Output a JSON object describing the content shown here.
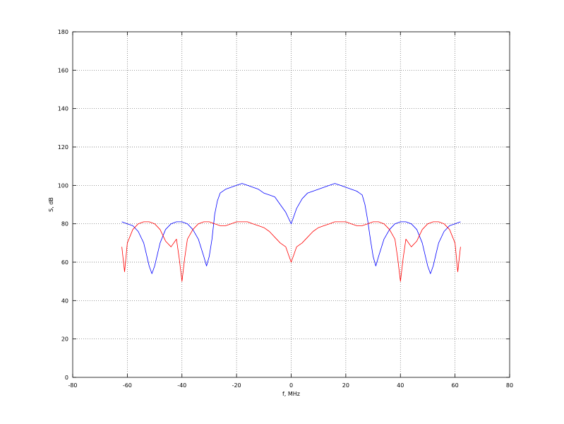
{
  "chart_data": {
    "type": "line",
    "title": "",
    "xlabel": "f, MHz",
    "ylabel": "S, dB",
    "xlim": [
      -80,
      80
    ],
    "ylim": [
      0,
      180
    ],
    "xticks": [
      -80,
      -60,
      -40,
      -20,
      0,
      20,
      40,
      60,
      80
    ],
    "yticks": [
      0,
      20,
      40,
      60,
      80,
      100,
      120,
      140,
      160,
      180
    ],
    "grid": true,
    "legend": "none",
    "series": [
      {
        "color": "#0000ff",
        "x": [
          -62,
          -60,
          -58,
          -56,
          -54,
          -53,
          -52,
          -51,
          -50,
          -48,
          -46,
          -44,
          -42,
          -40,
          -38,
          -36,
          -34,
          -32,
          -31,
          -30,
          -29,
          -28,
          -27,
          -26,
          -24,
          -22,
          -20,
          -18,
          -16,
          -14,
          -12,
          -10,
          -8,
          -6,
          -4,
          -2,
          -1,
          0,
          1,
          2,
          4,
          6,
          8,
          10,
          12,
          14,
          16,
          18,
          20,
          22,
          24,
          26,
          27,
          28,
          29,
          30,
          31,
          32,
          34,
          36,
          38,
          40,
          42,
          44,
          46,
          48,
          50,
          51,
          52,
          53,
          54,
          56,
          58,
          60,
          62
        ],
        "y": [
          81,
          80,
          79,
          76,
          70,
          64,
          58,
          54,
          58,
          70,
          77,
          80,
          81,
          81,
          80,
          77,
          72,
          63,
          58,
          63,
          72,
          85,
          92,
          96,
          98,
          99,
          100,
          101,
          100,
          99,
          98,
          96,
          95,
          94,
          90,
          86,
          83,
          80,
          84,
          88,
          93,
          96,
          97,
          98,
          99,
          100,
          101,
          100,
          99,
          98,
          97,
          95,
          90,
          82,
          72,
          63,
          58,
          63,
          72,
          77,
          80,
          81,
          81,
          80,
          77,
          70,
          58,
          54,
          58,
          64,
          70,
          76,
          79,
          80,
          81
        ]
      },
      {
        "color": "#ff0000",
        "x": [
          -62,
          -61,
          -60,
          -58,
          -56,
          -54,
          -52,
          -50,
          -48,
          -46,
          -44,
          -42,
          -41,
          -40,
          -39,
          -38,
          -36,
          -34,
          -32,
          -30,
          -28,
          -26,
          -24,
          -22,
          -20,
          -18,
          -16,
          -14,
          -12,
          -10,
          -8,
          -6,
          -4,
          -2,
          -1,
          0,
          1,
          2,
          4,
          6,
          8,
          10,
          12,
          14,
          16,
          18,
          20,
          22,
          24,
          26,
          28,
          30,
          32,
          34,
          36,
          38,
          39,
          40,
          41,
          42,
          44,
          46,
          48,
          50,
          52,
          54,
          56,
          58,
          60,
          61,
          62
        ],
        "y": [
          68,
          55,
          70,
          77,
          80,
          81,
          81,
          80,
          77,
          71,
          68,
          72,
          62,
          50,
          62,
          72,
          77,
          80,
          81,
          81,
          80,
          79,
          79,
          80,
          81,
          81,
          81,
          80,
          79,
          78,
          76,
          73,
          70,
          68,
          64,
          60,
          64,
          68,
          70,
          73,
          76,
          78,
          79,
          80,
          81,
          81,
          81,
          80,
          79,
          79,
          80,
          81,
          81,
          80,
          77,
          72,
          62,
          50,
          62,
          72,
          68,
          71,
          77,
          80,
          81,
          81,
          80,
          77,
          70,
          55,
          68
        ]
      }
    ]
  }
}
